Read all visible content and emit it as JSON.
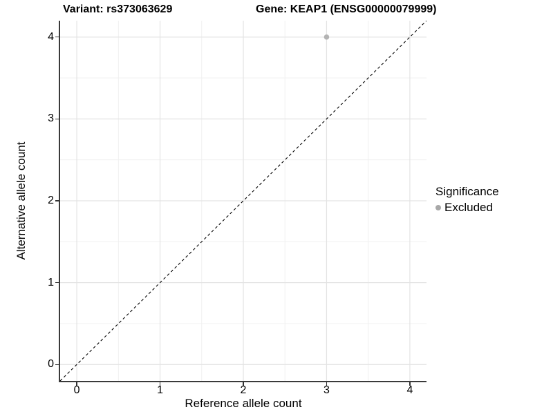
{
  "chart_data": {
    "type": "scatter",
    "title_left": "Variant: rs373063629",
    "title_right": "Gene: KEAP1 (ENSG00000079999)",
    "xlabel": "Reference allele count",
    "ylabel": "Alternative allele count",
    "xlim": [
      -0.2,
      4.2
    ],
    "ylim": [
      -0.2,
      4.2
    ],
    "xticks": [
      0,
      1,
      2,
      3,
      4
    ],
    "yticks": [
      0,
      1,
      2,
      3,
      4
    ],
    "xminor": [
      0.5,
      1.5,
      2.5,
      3.5
    ],
    "yminor": [
      0.5,
      1.5,
      2.5,
      3.5
    ],
    "grid": true,
    "series": [
      {
        "name": "Excluded",
        "color": "#b3b3b3",
        "point_radius": 3.8,
        "points": [
          [
            3,
            4
          ]
        ]
      }
    ],
    "reference_line": {
      "style": "dashed",
      "color": "#000000",
      "from": [
        -0.2,
        -0.2
      ],
      "to": [
        4.2,
        4.2
      ]
    },
    "legend": {
      "title": "Significance",
      "position": "right",
      "items": [
        {
          "label": "Excluded",
          "color": "#a8a8a8"
        }
      ]
    },
    "colors": {
      "grid_major": "#e3e3e3",
      "grid_minor": "#f0f0f0",
      "axis_line": "#3a3a3a",
      "background": "#ffffff",
      "text": "#000000"
    }
  }
}
